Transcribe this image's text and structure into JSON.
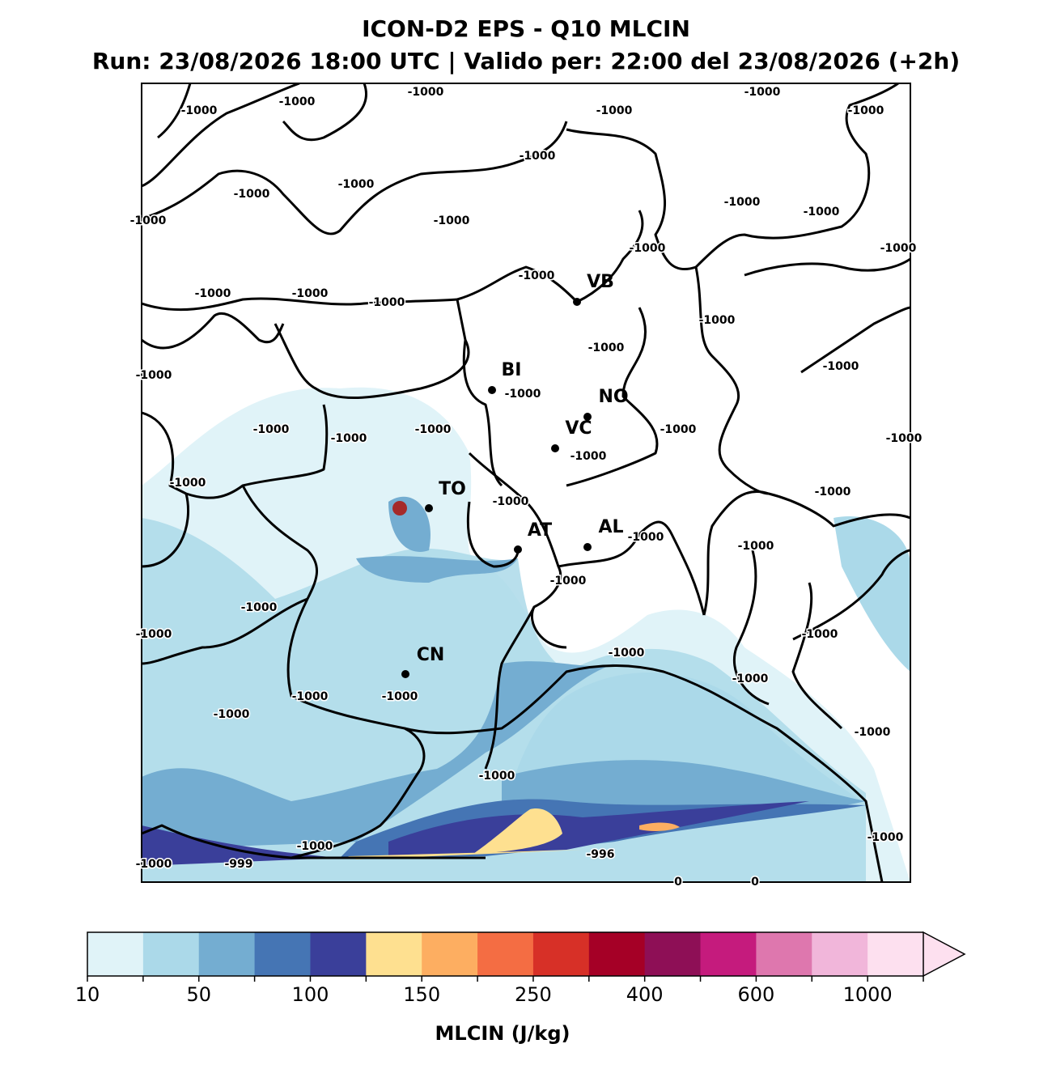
{
  "title": "ICON-D2 EPS - Q10 MLCIN",
  "subtitle": "Run: 23/08/2026 18:00 UTC | Valido per: 22:00 del 23/08/2026 (+2h)",
  "cities": [
    "VB",
    "BI",
    "NO",
    "VC",
    "TO",
    "AT",
    "AL",
    "CN"
  ],
  "contour_labels": [
    "-1000",
    "-1000",
    "-1000",
    "-1000",
    "-1000",
    "-1000",
    "-1000",
    "-1000",
    "-1000",
    "-1000",
    "-1000",
    "-1000",
    "-1000",
    "-1000",
    "-1000",
    "-1000",
    "-1000",
    "-1000",
    "-1000",
    "-1000",
    "-1000",
    "-1000",
    "-1000",
    "-1000",
    "-1000",
    "-1000",
    "-1000",
    "-1000",
    "-1000",
    "-1000",
    "-1000",
    "-1000",
    "-1000",
    "-1000",
    "-1000",
    "-1000",
    "-1000",
    "-1000",
    "-1000",
    "-1000",
    "-1000",
    "-1000",
    "-1000",
    "-1000",
    "-1000",
    "-1000",
    "-1000",
    "-1000",
    "-1000",
    "-999",
    "-996",
    "0",
    "0"
  ],
  "colorbar": {
    "label": "MLCIN (J/kg)",
    "colors": [
      "#e0f3f8",
      "#abd9e9",
      "#74add1",
      "#4575b4",
      "#3a3f9a",
      "#fee090",
      "#fdae61",
      "#f46d43",
      "#d73027",
      "#a50026",
      "#8e0f56",
      "#c51b7d",
      "#de77ae",
      "#f1b6da",
      "#fde0ef"
    ],
    "ticks": [
      10,
      50,
      100,
      150,
      250,
      400,
      600,
      1000
    ]
  }
}
